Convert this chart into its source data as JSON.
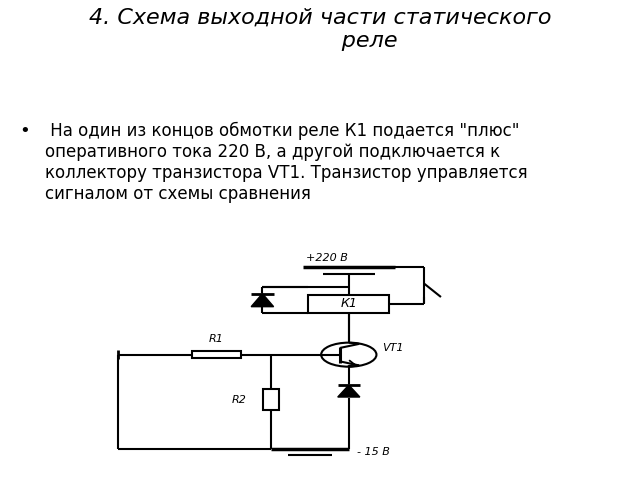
{
  "title_line1": "4. Схема выходной части статического реле",
  "title_line2": "реле",
  "title_fontsize": 16,
  "title_style": "italic",
  "bullet_text_line1": " На один из концов обмотки реле К1 подается \"плюс\"",
  "bullet_text_line2": "оперативного тока 220 В, а другой подключается к",
  "bullet_text_line3": "коллектору транзистора VT1. Транзистор управляется",
  "bullet_text_line4": "сигналом от схемы сравнения",
  "bullet_fontsize": 12,
  "background_color": "#ffffff",
  "line_color": "#000000",
  "label_220": "+220 В",
  "label_15": "- 15 В",
  "label_K1": "К1",
  "label_R1": "R1",
  "label_R2": "R2",
  "label_VT1": "VT1"
}
